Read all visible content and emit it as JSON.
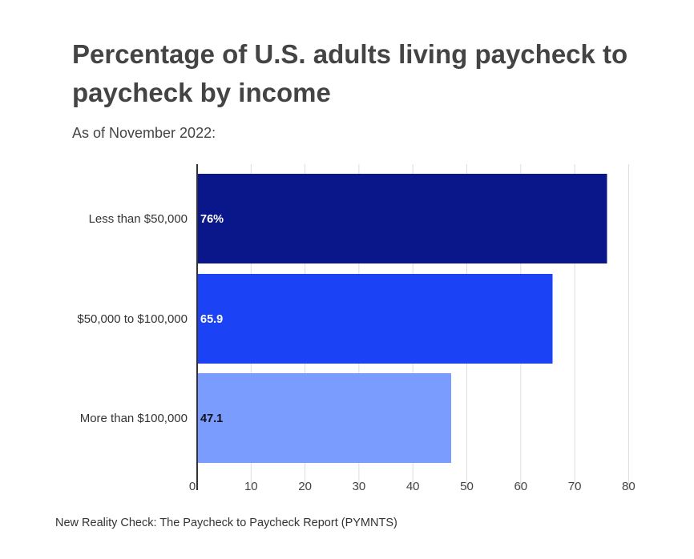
{
  "title": "Percentage of U.S. adults living paycheck to paycheck by income",
  "subtitle": "As of November 2022:",
  "source": "New Reality Check: The Paycheck to Paycheck Report (PYMNTS)",
  "chart_data": {
    "type": "bar",
    "orientation": "horizontal",
    "title": "Percentage of U.S. adults living paycheck to paycheck by income",
    "subtitle": "As of November 2022:",
    "categories": [
      "Less than $50,000",
      "$50,000 to $100,000",
      "More than $100,000"
    ],
    "values": [
      76,
      65.9,
      47.1
    ],
    "data_labels": [
      "76%",
      "65.9",
      "47.1"
    ],
    "colors": [
      "#0a178a",
      "#1b43f5",
      "#7a9cff"
    ],
    "label_colors": [
      "#ffffff",
      "#ffffff",
      "#111111"
    ],
    "xlim": [
      0,
      80
    ],
    "xticks": [
      0,
      10,
      20,
      30,
      40,
      50,
      60,
      70,
      80
    ],
    "xlabel": "",
    "ylabel": "",
    "grid": true,
    "legend": "none"
  }
}
